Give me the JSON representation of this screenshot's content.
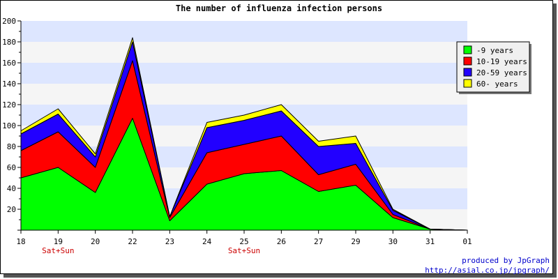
{
  "chart_data": {
    "type": "area",
    "stacked": true,
    "title": "The number of influenza infection persons",
    "categories": [
      "18",
      "19",
      "20",
      "22",
      "23",
      "24",
      "25",
      "26",
      "27",
      "29",
      "30",
      "31",
      "01"
    ],
    "weekend_markers": [
      {
        "category": "19",
        "label": "Sat+Sun"
      },
      {
        "category": "25",
        "label": "Sat+Sun"
      }
    ],
    "ylim": [
      0,
      200
    ],
    "yticks": [
      20,
      40,
      60,
      80,
      100,
      120,
      140,
      160,
      180,
      200
    ],
    "series": [
      {
        "name": "-9 years",
        "color": "#00ff00",
        "values": [
          50,
          60,
          36,
          107,
          9,
          44,
          54,
          57,
          37,
          43,
          12,
          1,
          0
        ]
      },
      {
        "name": "10-19 years",
        "color": "#ff0000",
        "values": [
          26,
          34,
          24,
          55,
          3,
          30,
          28,
          33,
          16,
          20,
          3,
          0,
          0
        ]
      },
      {
        "name": "20-59 years",
        "color": "#2200ff",
        "values": [
          16,
          17,
          10,
          18,
          1,
          24,
          23,
          24,
          27,
          20,
          4,
          0,
          0
        ]
      },
      {
        "name": "60- years",
        "color": "#ffff00",
        "values": [
          3,
          5,
          3,
          4,
          0,
          5,
          5,
          6,
          5,
          7,
          1,
          0,
          0
        ]
      }
    ],
    "grid_band_colors": [
      "#f5f5f5",
      "#dde6ff"
    ],
    "legend_position": "top-right"
  },
  "footer": {
    "credit_line1": "produced by JpGraph",
    "credit_line2": "http://asial.co.jp/jpgraph/"
  }
}
